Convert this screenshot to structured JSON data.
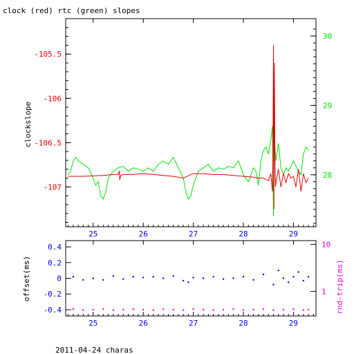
{
  "title": "clock (red) rtc (green) slopes",
  "footer": "2011-04-24 charas",
  "colors": {
    "clock": "#e00000",
    "rtc": "#00e000",
    "offset": "#0000e0",
    "rtt": "#e000e0",
    "axis": "#000000"
  },
  "chart_data": [
    {
      "type": "line",
      "panel": "top",
      "title": "clock (red) rtc (green) slopes",
      "xlabel": "",
      "ylabel": "clockslope",
      "y2label": "",
      "xlim": [
        24.45,
        29.45
      ],
      "ylim": [
        -107.45,
        -105.1
      ],
      "y2lim": [
        27.25,
        30.25
      ],
      "xticks": [
        "25",
        "26",
        "27",
        "28",
        "29"
      ],
      "yticks": [
        "-105.5",
        "-106",
        "-106.5",
        "-107"
      ],
      "y2ticks": [
        "28",
        "29",
        "30"
      ],
      "series": [
        {
          "axis": "left",
          "x": [
            24.5,
            24.8,
            25.2,
            25.4,
            25.5,
            25.52,
            25.53,
            25.55,
            25.6,
            25.8,
            26.0,
            26.2,
            26.4,
            26.6,
            26.8,
            26.95,
            27.0,
            27.2,
            27.4,
            27.6,
            27.8,
            28.0,
            28.2,
            28.3,
            28.4,
            28.5,
            28.55,
            28.58,
            28.59,
            28.6,
            28.61,
            28.62,
            28.63,
            28.64,
            28.65,
            28.7,
            28.75,
            28.8,
            28.85,
            28.9,
            28.95,
            29.0,
            29.05,
            29.1,
            29.15,
            29.2,
            29.25,
            29.3
          ],
          "values": [
            -106.88,
            -106.88,
            -106.87,
            -106.86,
            -106.86,
            -106.82,
            -106.92,
            -106.87,
            -106.86,
            -106.86,
            -106.85,
            -106.86,
            -106.87,
            -106.88,
            -106.9,
            -106.86,
            -106.85,
            -106.85,
            -106.86,
            -106.86,
            -106.87,
            -106.88,
            -106.89,
            -106.9,
            -106.9,
            -106.93,
            -106.85,
            -107.05,
            -106.7,
            -105.4,
            -107.25,
            -105.6,
            -106.6,
            -107.0,
            -106.95,
            -106.8,
            -107.0,
            -106.85,
            -106.95,
            -106.85,
            -106.9,
            -106.88,
            -107.0,
            -106.8,
            -107.05,
            -106.85,
            -106.95,
            -106.9
          ]
        },
        {
          "axis": "right",
          "x": [
            24.5,
            24.55,
            24.6,
            24.65,
            24.7,
            24.8,
            24.9,
            25.0,
            25.05,
            25.1,
            25.15,
            25.2,
            25.25,
            25.3,
            25.4,
            25.5,
            25.6,
            25.7,
            25.8,
            25.9,
            26.0,
            26.1,
            26.2,
            26.3,
            26.4,
            26.5,
            26.6,
            26.7,
            26.8,
            26.85,
            26.9,
            26.95,
            27.0,
            27.1,
            27.2,
            27.3,
            27.4,
            27.5,
            27.6,
            27.7,
            27.8,
            27.9,
            28.0,
            28.1,
            28.2,
            28.25,
            28.3,
            28.35,
            28.4,
            28.45,
            28.5,
            28.55,
            28.58,
            28.6,
            28.62,
            28.65,
            28.7,
            28.75,
            28.8,
            28.85,
            28.9,
            29.0,
            29.1,
            29.15,
            29.2,
            29.25,
            29.3
          ],
          "values": [
            28.0,
            28.05,
            28.2,
            28.25,
            28.2,
            28.15,
            28.1,
            27.95,
            27.85,
            27.9,
            27.7,
            27.65,
            27.75,
            27.95,
            28.05,
            28.1,
            28.12,
            28.05,
            28.1,
            28.08,
            28.05,
            28.1,
            28.05,
            28.15,
            28.2,
            28.15,
            28.25,
            28.1,
            27.95,
            27.75,
            27.65,
            27.7,
            27.85,
            28.05,
            28.1,
            28.15,
            28.05,
            28.1,
            28.08,
            28.12,
            28.1,
            28.2,
            28.0,
            27.9,
            28.1,
            28.05,
            27.85,
            28.2,
            28.35,
            28.4,
            28.3,
            28.5,
            28.7,
            27.4,
            28.5,
            28.2,
            28.45,
            28.1,
            28.0,
            28.1,
            28.05,
            28.2,
            28.05,
            28.0,
            28.3,
            28.4,
            28.35
          ]
        }
      ]
    },
    {
      "type": "scatter",
      "panel": "bottom",
      "xlabel": "",
      "ylabel": "offset(ms)",
      "y2label": "rnd-trip(ms)",
      "y2scale": "log",
      "xlim": [
        24.45,
        29.45
      ],
      "ylim": [
        -0.48,
        0.48
      ],
      "y2lim": [
        0.3,
        12
      ],
      "xticks": [
        "25",
        "26",
        "27",
        "28",
        "29"
      ],
      "yticks": [
        "0.4",
        "0.2",
        "0",
        "-0.2",
        "-0.4"
      ],
      "y2ticks": [
        "10",
        "1"
      ],
      "series": [
        {
          "axis": "left",
          "x": [
            24.6,
            24.8,
            25.0,
            25.2,
            25.4,
            25.6,
            25.8,
            26.0,
            26.2,
            26.4,
            26.6,
            26.8,
            26.9,
            27.0,
            27.2,
            27.4,
            27.6,
            27.8,
            28.0,
            28.2,
            28.4,
            28.6,
            28.7,
            28.8,
            28.9,
            29.0,
            29.1,
            29.2,
            29.3
          ],
          "values": [
            0.02,
            -0.02,
            0.0,
            -0.02,
            0.03,
            -0.01,
            0.02,
            0.01,
            0.02,
            0.0,
            0.03,
            -0.03,
            -0.05,
            0.01,
            0.0,
            0.02,
            -0.01,
            0.0,
            0.02,
            -0.02,
            0.05,
            -0.08,
            0.1,
            0.0,
            -0.05,
            0.02,
            0.08,
            -0.03,
            0.02
          ]
        },
        {
          "axis": "right",
          "x": [
            24.6,
            24.8,
            25.0,
            25.2,
            25.4,
            25.6,
            25.8,
            26.0,
            26.2,
            26.4,
            26.6,
            26.8,
            27.0,
            27.2,
            27.4,
            27.6,
            27.8,
            28.0,
            28.2,
            28.4,
            28.6,
            28.8,
            29.0,
            29.2,
            29.3
          ],
          "values": [
            0.42,
            0.4,
            0.41,
            0.42,
            0.4,
            0.41,
            0.42,
            0.41,
            0.4,
            0.42,
            0.41,
            0.4,
            0.42,
            0.41,
            0.4,
            0.41,
            0.42,
            0.4,
            0.41,
            0.42,
            0.4,
            0.41,
            0.42,
            0.4,
            0.41
          ]
        }
      ]
    }
  ]
}
